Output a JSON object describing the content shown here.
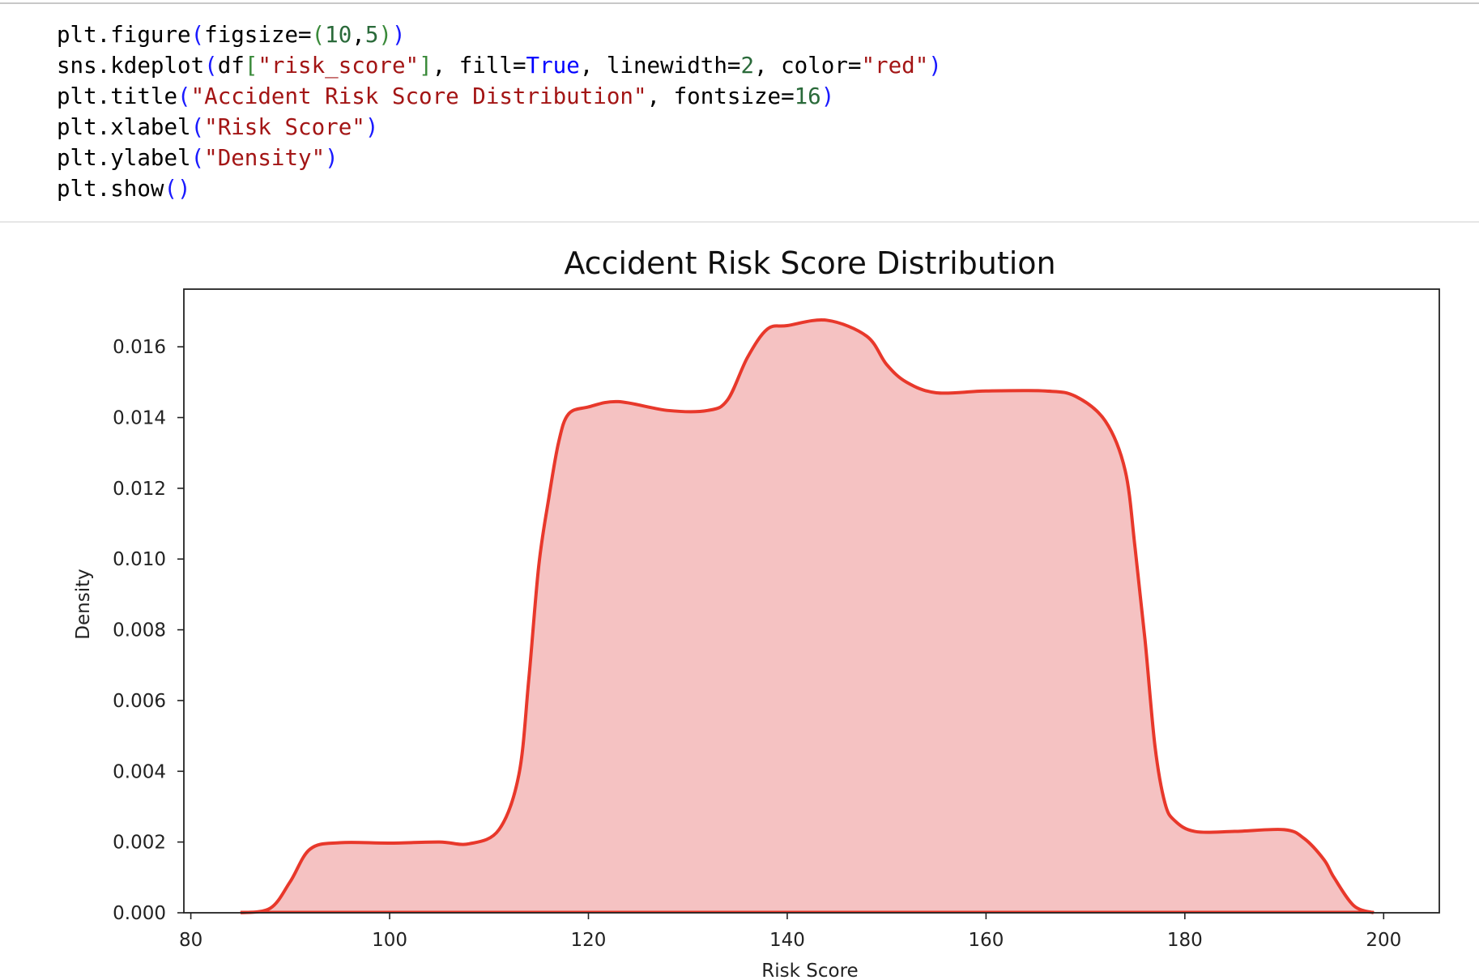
{
  "code_cell": {
    "lines": [
      [
        {
          "t": "plt.figure",
          "c": "k"
        },
        {
          "t": "(",
          "c": "p"
        },
        {
          "t": "figsize=",
          "c": "k"
        },
        {
          "t": "(",
          "c": "g"
        },
        {
          "t": "10",
          "c": "n"
        },
        {
          "t": ",",
          "c": "k"
        },
        {
          "t": "5",
          "c": "n"
        },
        {
          "t": ")",
          "c": "g"
        },
        {
          "t": ")",
          "c": "p"
        }
      ],
      [
        {
          "t": "sns.kdeplot",
          "c": "k"
        },
        {
          "t": "(",
          "c": "p"
        },
        {
          "t": "df",
          "c": "k"
        },
        {
          "t": "[",
          "c": "g"
        },
        {
          "t": "\"risk_score\"",
          "c": "s"
        },
        {
          "t": "]",
          "c": "g"
        },
        {
          "t": ", fill=",
          "c": "k"
        },
        {
          "t": "True",
          "c": "b"
        },
        {
          "t": ", linewidth=",
          "c": "k"
        },
        {
          "t": "2",
          "c": "n"
        },
        {
          "t": ", color=",
          "c": "k"
        },
        {
          "t": "\"red\"",
          "c": "s"
        },
        {
          "t": ")",
          "c": "p"
        }
      ],
      [
        {
          "t": "plt.title",
          "c": "k"
        },
        {
          "t": "(",
          "c": "p"
        },
        {
          "t": "\"Accident Risk Score Distribution\"",
          "c": "s"
        },
        {
          "t": ", fontsize=",
          "c": "k"
        },
        {
          "t": "16",
          "c": "n"
        },
        {
          "t": ")",
          "c": "p"
        }
      ],
      [
        {
          "t": "plt.xlabel",
          "c": "k"
        },
        {
          "t": "(",
          "c": "p"
        },
        {
          "t": "\"Risk Score\"",
          "c": "s"
        },
        {
          "t": ")",
          "c": "p"
        }
      ],
      [
        {
          "t": "plt.ylabel",
          "c": "k"
        },
        {
          "t": "(",
          "c": "p"
        },
        {
          "t": "\"Density\"",
          "c": "s"
        },
        {
          "t": ")",
          "c": "p"
        }
      ],
      [
        {
          "t": "plt.show",
          "c": "k"
        },
        {
          "t": "(",
          "c": "p"
        },
        {
          "t": ")",
          "c": "p"
        }
      ]
    ]
  },
  "chart_data": {
    "type": "area",
    "title": "Accident Risk Score Distribution",
    "xlabel": "Risk Score",
    "ylabel": "Density",
    "xlim": [
      79.3,
      205.6
    ],
    "ylim": [
      0,
      0.01763
    ],
    "xticks": [
      80,
      100,
      120,
      140,
      160,
      180,
      200
    ],
    "yticks": [
      "0.000",
      "0.002",
      "0.004",
      "0.006",
      "0.008",
      "0.010",
      "0.012",
      "0.014",
      "0.016"
    ],
    "grid": false,
    "line_color": "#e8382b",
    "fill_color": "#f5c2c2",
    "x": [
      85,
      88,
      90,
      92,
      95,
      100,
      105,
      108,
      111,
      113,
      114,
      115,
      116,
      117,
      118,
      120,
      123,
      128,
      132,
      134,
      136,
      138,
      140,
      144,
      148,
      150,
      152,
      155,
      160,
      166,
      169,
      172,
      174,
      175,
      176,
      177,
      178,
      179,
      181,
      185,
      190,
      192,
      194,
      195,
      197,
      199
    ],
    "y": [
      0,
      0.00013,
      0.00088,
      0.0018,
      0.00198,
      0.00197,
      0.002,
      0.00195,
      0.00235,
      0.0039,
      0.0066,
      0.0098,
      0.0117,
      0.0133,
      0.0141,
      0.0143,
      0.01445,
      0.0142,
      0.0142,
      0.0145,
      0.0157,
      0.0165,
      0.0166,
      0.01675,
      0.0163,
      0.0155,
      0.015,
      0.0147,
      0.01475,
      0.01475,
      0.0146,
      0.0139,
      0.0125,
      0.0103,
      0.0077,
      0.0047,
      0.0031,
      0.0026,
      0.0023,
      0.0023,
      0.00235,
      0.0021,
      0.0015,
      0.001,
      0.0002,
      0
    ]
  }
}
